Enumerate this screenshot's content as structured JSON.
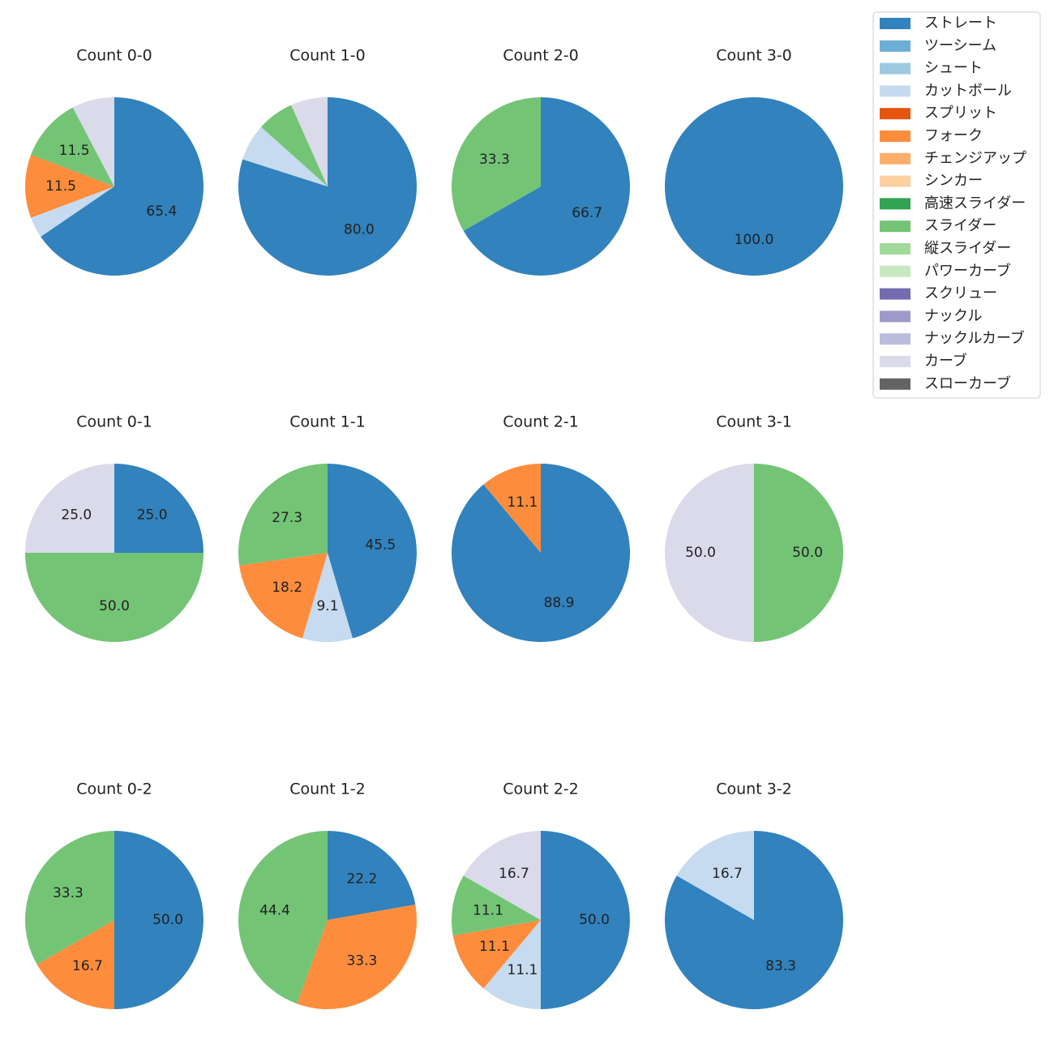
{
  "chart_data": [
    {
      "type": "pie",
      "title": "Count 0-0",
      "values": [
        65.4,
        0,
        0,
        3.8,
        0,
        11.5,
        0,
        0,
        0,
        11.5,
        0,
        0,
        0,
        0,
        0,
        7.7,
        0
      ],
      "value_labels": [
        "65.4",
        null,
        null,
        null,
        null,
        "11.5",
        null,
        null,
        null,
        "11.5",
        null,
        null,
        null,
        null,
        null,
        null,
        null
      ]
    },
    {
      "type": "pie",
      "title": "Count 1-0",
      "values": [
        80.0,
        0,
        0,
        6.7,
        0,
        0,
        0,
        0,
        0,
        6.7,
        0,
        0,
        0,
        0,
        0,
        6.7,
        0
      ],
      "value_labels": [
        "80.0",
        null,
        null,
        null,
        null,
        null,
        null,
        null,
        null,
        null,
        null,
        null,
        null,
        null,
        null,
        null,
        null
      ]
    },
    {
      "type": "pie",
      "title": "Count 2-0",
      "values": [
        66.7,
        0,
        0,
        0,
        0,
        0,
        0,
        0,
        0,
        33.3,
        0,
        0,
        0,
        0,
        0,
        0,
        0
      ],
      "value_labels": [
        "66.7",
        null,
        null,
        null,
        null,
        null,
        null,
        null,
        null,
        "33.3",
        null,
        null,
        null,
        null,
        null,
        null,
        null
      ]
    },
    {
      "type": "pie",
      "title": "Count 3-0",
      "values": [
        100.0,
        0,
        0,
        0,
        0,
        0,
        0,
        0,
        0,
        0,
        0,
        0,
        0,
        0,
        0,
        0,
        0
      ],
      "value_labels": [
        "100.0",
        null,
        null,
        null,
        null,
        null,
        null,
        null,
        null,
        null,
        null,
        null,
        null,
        null,
        null,
        null,
        null
      ]
    },
    {
      "type": "pie",
      "title": "Count 0-1",
      "values": [
        25.0,
        0,
        0,
        0,
        0,
        0,
        0,
        0,
        0,
        50.0,
        0,
        0,
        0,
        0,
        0,
        25.0,
        0
      ],
      "value_labels": [
        "25.0",
        null,
        null,
        null,
        null,
        null,
        null,
        null,
        null,
        "50.0",
        null,
        null,
        null,
        null,
        null,
        "25.0",
        null
      ]
    },
    {
      "type": "pie",
      "title": "Count 1-1",
      "values": [
        45.5,
        0,
        0,
        9.1,
        0,
        18.2,
        0,
        0,
        0,
        27.3,
        0,
        0,
        0,
        0,
        0,
        0,
        0
      ],
      "value_labels": [
        "45.5",
        null,
        null,
        "9.1",
        null,
        "18.2",
        null,
        null,
        null,
        "27.3",
        null,
        null,
        null,
        null,
        null,
        null,
        null
      ]
    },
    {
      "type": "pie",
      "title": "Count 2-1",
      "values": [
        88.9,
        0,
        0,
        0,
        0,
        11.1,
        0,
        0,
        0,
        0,
        0,
        0,
        0,
        0,
        0,
        0,
        0
      ],
      "value_labels": [
        "88.9",
        null,
        null,
        null,
        null,
        "11.1",
        null,
        null,
        null,
        null,
        null,
        null,
        null,
        null,
        null,
        null,
        null
      ]
    },
    {
      "type": "pie",
      "title": "Count 3-1",
      "values": [
        0,
        0,
        0,
        0,
        0,
        0,
        0,
        0,
        0,
        50.0,
        0,
        0,
        0,
        0,
        0,
        50.0,
        0
      ],
      "value_labels": [
        null,
        null,
        null,
        null,
        null,
        null,
        null,
        null,
        null,
        "50.0",
        null,
        null,
        null,
        null,
        null,
        "50.0",
        null
      ]
    },
    {
      "type": "pie",
      "title": "Count 0-2",
      "values": [
        50.0,
        0,
        0,
        0,
        0,
        16.7,
        0,
        0,
        0,
        33.3,
        0,
        0,
        0,
        0,
        0,
        0,
        0
      ],
      "value_labels": [
        "50.0",
        null,
        null,
        null,
        null,
        "16.7",
        null,
        null,
        null,
        "33.3",
        null,
        null,
        null,
        null,
        null,
        null,
        null
      ]
    },
    {
      "type": "pie",
      "title": "Count 1-2",
      "values": [
        22.2,
        0,
        0,
        0,
        0,
        33.3,
        0,
        0,
        0,
        44.4,
        0,
        0,
        0,
        0,
        0,
        0,
        0
      ],
      "value_labels": [
        "22.2",
        null,
        null,
        null,
        null,
        "33.3",
        null,
        null,
        null,
        "44.4",
        null,
        null,
        null,
        null,
        null,
        null,
        null
      ]
    },
    {
      "type": "pie",
      "title": "Count 2-2",
      "values": [
        50.0,
        0,
        0,
        11.1,
        0,
        11.1,
        0,
        0,
        0,
        11.1,
        0,
        0,
        0,
        0,
        0,
        16.7,
        0
      ],
      "value_labels": [
        "50.0",
        null,
        null,
        "11.1",
        null,
        "11.1",
        null,
        null,
        null,
        "11.1",
        null,
        null,
        null,
        null,
        null,
        "16.7",
        null
      ]
    },
    {
      "type": "pie",
      "title": "Count 3-2",
      "values": [
        83.3,
        0,
        0,
        16.7,
        0,
        0,
        0,
        0,
        0,
        0,
        0,
        0,
        0,
        0,
        0,
        0,
        0
      ],
      "value_labels": [
        "83.3",
        null,
        null,
        "16.7",
        null,
        null,
        null,
        null,
        null,
        null,
        null,
        null,
        null,
        null,
        null,
        null,
        null
      ]
    }
  ],
  "legend": {
    "items": [
      {
        "name": "ストレート",
        "color": "#3182bd"
      },
      {
        "name": "ツーシーム",
        "color": "#6baed6"
      },
      {
        "name": "シュート",
        "color": "#9ecae1"
      },
      {
        "name": "カットボール",
        "color": "#c6dbef"
      },
      {
        "name": "スプリット",
        "color": "#e6550d"
      },
      {
        "name": "フォーク",
        "color": "#fd8d3c"
      },
      {
        "name": "チェンジアップ",
        "color": "#fdae6b"
      },
      {
        "name": "シンカー",
        "color": "#fdd0a2"
      },
      {
        "name": "高速スライダー",
        "color": "#31a354"
      },
      {
        "name": "スライダー",
        "color": "#74c476"
      },
      {
        "name": "縦スライダー",
        "color": "#a1d99b"
      },
      {
        "name": "パワーカーブ",
        "color": "#c7e9c0"
      },
      {
        "name": "スクリュー",
        "color": "#756bb1"
      },
      {
        "name": "ナックル",
        "color": "#9e9ac8"
      },
      {
        "name": "ナックルカーブ",
        "color": "#bcbddc"
      },
      {
        "name": "カーブ",
        "color": "#dadaeb"
      },
      {
        "name": "スローカーブ",
        "color": "#636363"
      }
    ]
  }
}
